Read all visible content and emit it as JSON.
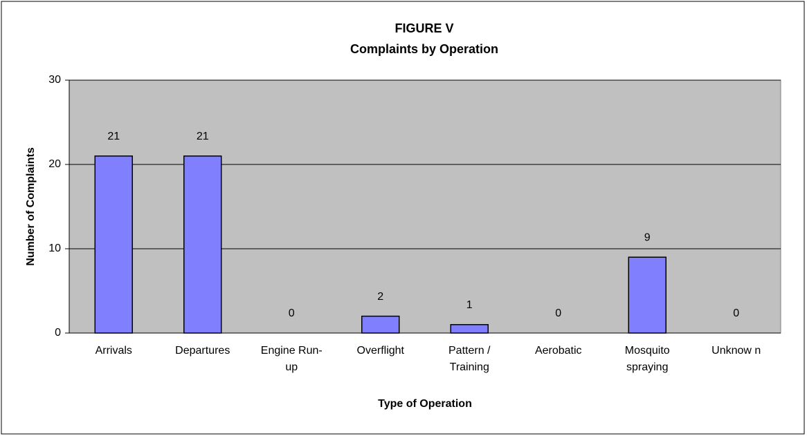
{
  "chart_data": {
    "type": "bar",
    "title": "FIGURE V",
    "subtitle": "Complaints by Operation",
    "x_label": "Type of Operation",
    "y_label": "Number of Complaints",
    "categories": [
      "Arrivals",
      "Departures",
      "Engine Run-up",
      "Overflight",
      "Pattern / Training",
      "Aerobatic",
      "Mosquito spraying",
      "Unknow n"
    ],
    "values": [
      21,
      21,
      0,
      2,
      1,
      0,
      9,
      0
    ],
    "color": "#8080ff",
    "ylim": [
      0,
      30
    ],
    "yticks": [
      0,
      10,
      20,
      30
    ],
    "grid": true
  }
}
